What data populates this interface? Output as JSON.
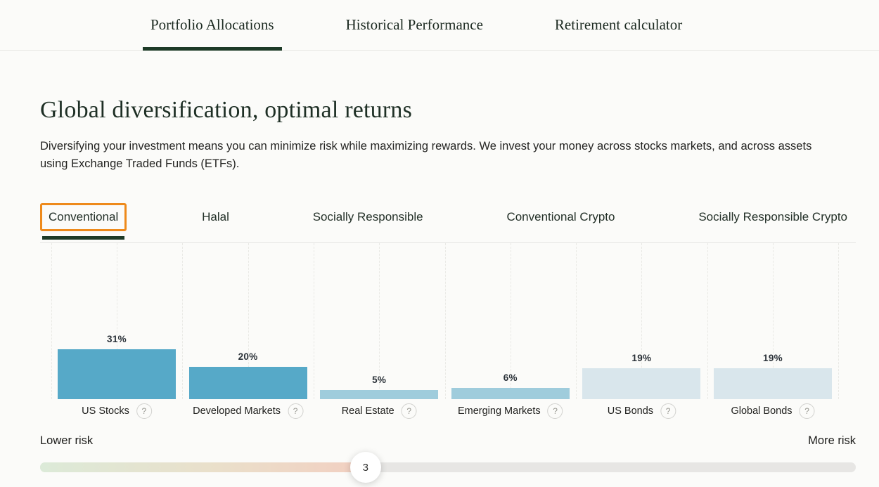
{
  "nav": {
    "tabs": [
      {
        "label": "Portfolio Allocations",
        "active": true
      },
      {
        "label": "Historical Performance",
        "active": false
      },
      {
        "label": "Retirement calculator",
        "active": false
      }
    ]
  },
  "header": {
    "title": "Global diversification, optimal returns",
    "description": "Diversifying your investment means you can minimize risk while maximizing rewards. We invest your money across stocks markets, and across assets using Exchange Traded Funds (ETFs)."
  },
  "portfolio_tabs": {
    "items": [
      {
        "label": "Conventional",
        "active": true,
        "focused": true
      },
      {
        "label": "Halal",
        "active": false,
        "focused": false
      },
      {
        "label": "Socially Responsible",
        "active": false,
        "focused": false
      },
      {
        "label": "Conventional Crypto",
        "active": false,
        "focused": false
      },
      {
        "label": "Socially Responsible Crypto",
        "active": false,
        "focused": false
      }
    ]
  },
  "chart_data": {
    "type": "bar",
    "title": "",
    "unit": "percent",
    "categories": [
      "US Stocks",
      "Developed Markets",
      "Real Estate",
      "Emerging Markets",
      "US Bonds",
      "Global Bonds"
    ],
    "values": [
      31,
      20,
      5,
      6,
      19,
      19
    ],
    "value_labels": [
      "31%",
      "20%",
      "5%",
      "6%",
      "19%",
      "19%"
    ],
    "bar_colors": [
      "#56a9c8",
      "#56a9c8",
      "#9fccdc",
      "#9fccdc",
      "#d9e6ec",
      "#d9e6ec"
    ],
    "help_icon": "?",
    "ylim": [
      0,
      31
    ],
    "grid": "vertical-dashed",
    "legend": "none"
  },
  "risk_slider": {
    "lower_label": "Lower risk",
    "more_label": "More risk",
    "value": "3",
    "position_percent": 39.9,
    "track_gradient": [
      "#dcead8",
      "#f2cfc1"
    ],
    "track_rest_color": "#e7e6e4"
  },
  "colors": {
    "accent_green": "#1d3a27",
    "focus_orange": "#ee8a1b",
    "bar_strong": "#56a9c8",
    "bar_medium": "#9fccdc",
    "bar_light": "#d9e6ec",
    "border_gray": "#e5e5e2"
  }
}
